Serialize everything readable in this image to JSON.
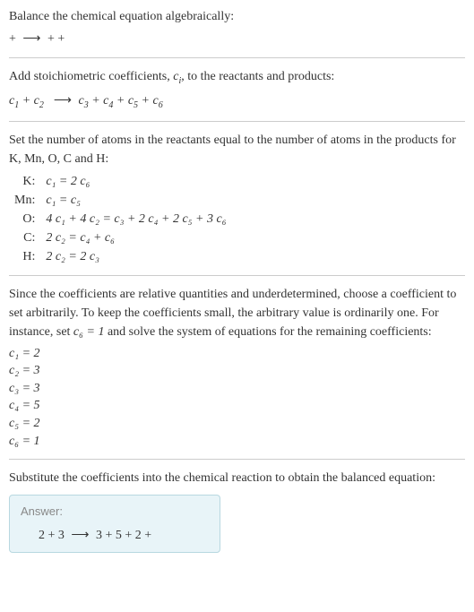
{
  "intro": {
    "line1": "Balance the chemical equation algebraically:",
    "line2_pre": " + ",
    "line2_arrow": "⟶",
    "line2_post": " + + "
  },
  "stoich": {
    "text": "Add stoichiometric coefficients, ",
    "var": "c",
    "subi": "i",
    "text2": ", to the reactants and products:",
    "eq_c1": "c",
    "eq_s1": "1",
    "eq_plus1": " + ",
    "eq_c2": "c",
    "eq_s2": "2",
    "eq_arrow": "⟶",
    "eq_c3": "c",
    "eq_s3": "3",
    "eq_plus2": " + ",
    "eq_c4": "c",
    "eq_s4": "4",
    "eq_plus3": " + ",
    "eq_c5": "c",
    "eq_s5": "5",
    "eq_plus4": " + ",
    "eq_c6": "c",
    "eq_s6": "6"
  },
  "atoms": {
    "text": "Set the number of atoms in the reactants equal to the number of atoms in the products for K, Mn, O, C and H:",
    "rows": {
      "k_label": "K:",
      "k_eq": "c₁ = 2 c₆",
      "mn_label": "Mn:",
      "mn_eq": "c₁ = c₅",
      "o_label": "O:",
      "o_eq": "4 c₁ + 4 c₂ = c₃ + 2 c₄ + 2 c₅ + 3 c₆",
      "c_label": "C:",
      "c_eq": "2 c₂ = c₄ + c₆",
      "h_label": "H:",
      "h_eq": "2 c₂ = 2 c₃"
    }
  },
  "solve": {
    "text1": "Since the coefficients are relative quantities and underdetermined, choose a coefficient to set arbitrarily. To keep the coefficients small, the arbitrary value is ordinarily one. For instance, set ",
    "var": "c₆ = 1",
    "text2": " and solve the system of equations for the remaining coefficients:",
    "c1": "c₁ = 2",
    "c2": "c₂ = 3",
    "c3": "c₃ = 3",
    "c4": "c₄ = 5",
    "c5": "c₅ = 2",
    "c6": "c₆ = 1"
  },
  "final": {
    "text": "Substitute the coefficients into the chemical reaction to obtain the balanced equation:",
    "answer_label": "Answer:",
    "answer_eq_pre": "2  + 3  ",
    "answer_arrow": "⟶",
    "answer_eq_post": " 3  + 5  + 2  + "
  },
  "colors": {
    "text": "#333333",
    "rule": "#cccccc",
    "answer_bg": "#e8f4f8",
    "answer_border": "#b8d8e0",
    "answer_label": "#888888"
  }
}
